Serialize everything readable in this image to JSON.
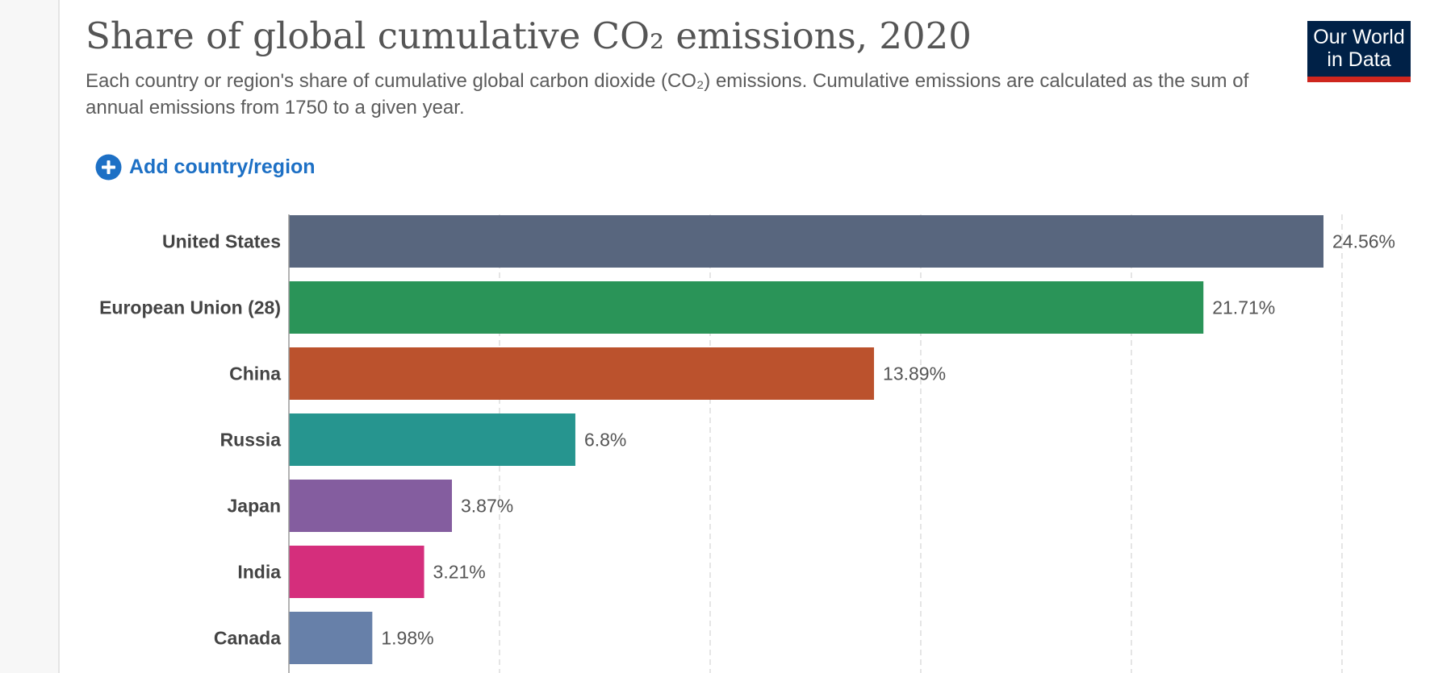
{
  "header": {
    "title": "Share of global cumulative CO₂ emissions, 2020",
    "subtitle": "Each country or region's share of cumulative global carbon dioxide (CO₂) emissions. Cumulative emissions are calculated as the sum of annual emissions from 1750 to a given year.",
    "logo_line1": "Our World",
    "logo_line2": "in Data",
    "logo_colors": {
      "background": "#002147",
      "accent": "#ce261e"
    }
  },
  "controls": {
    "add_country_label": "Add country/region",
    "add_icon": "plus-circle-icon",
    "accent": "#1d70c5"
  },
  "chart_data": {
    "type": "bar",
    "orientation": "horizontal",
    "title": "Share of global cumulative CO₂ emissions, 2020",
    "xlabel": "",
    "ylabel": "",
    "xlim": [
      0,
      25
    ],
    "grid": true,
    "categories": [
      "United States",
      "European Union (28)",
      "China",
      "Russia",
      "Japan",
      "India",
      "Canada"
    ],
    "values": [
      24.56,
      21.71,
      13.89,
      6.8,
      3.87,
      3.21,
      1.98
    ],
    "value_labels": [
      "24.56%",
      "21.71%",
      "13.89%",
      "6.8%",
      "3.87%",
      "3.21%",
      "1.98%"
    ],
    "colors": [
      "#58667e",
      "#2a9458",
      "#bb522d",
      "#26958f",
      "#845d9f",
      "#d52e7c",
      "#6780a9"
    ],
    "unit": "%"
  }
}
